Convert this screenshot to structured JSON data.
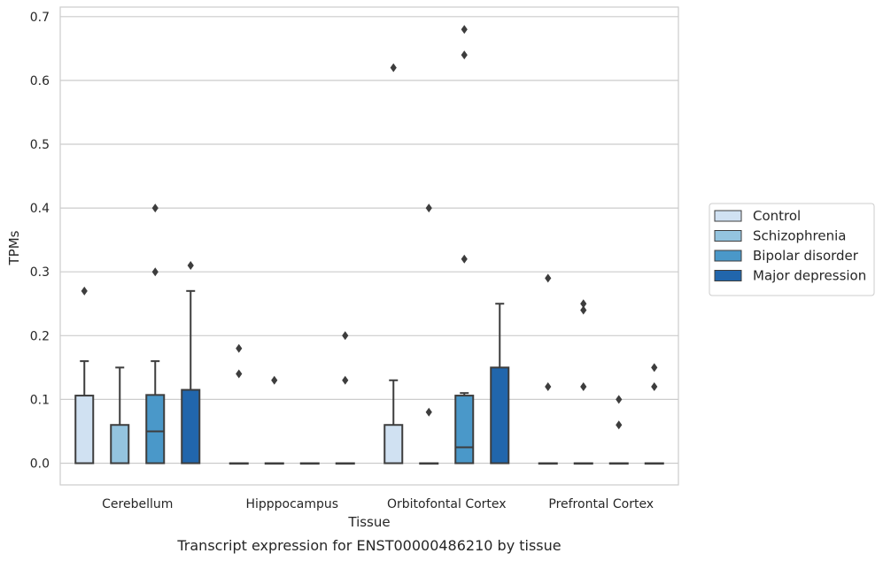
{
  "chart_data": {
    "type": "box",
    "title": "",
    "caption": "Transcript expression for ENST00000486210 by tissue",
    "xlabel": "Tissue",
    "ylabel": "TPMs",
    "ylim": [
      -0.034,
      0.715
    ],
    "yticks": [
      0.0,
      0.1,
      0.2,
      0.3,
      0.4,
      0.5,
      0.6,
      0.7
    ],
    "ytick_labels": [
      "0.0",
      "0.1",
      "0.2",
      "0.3",
      "0.4",
      "0.5",
      "0.6",
      "0.7"
    ],
    "grid": "horizontal",
    "legend_position": "right",
    "categories": [
      "Cerebellum",
      "Hipppocampus",
      "Orbitofontal Cortex",
      "Prefrontal Cortex"
    ],
    "series": [
      {
        "name": "Control",
        "color": "#d0e1f2",
        "boxes": [
          {
            "q1": 0.0,
            "median": 0.0,
            "q3": 0.106,
            "whisker_low": 0.0,
            "whisker_high": 0.16,
            "outliers": [
              0.27
            ]
          },
          {
            "q1": 0.0,
            "median": 0.0,
            "q3": 0.0,
            "whisker_low": 0.0,
            "whisker_high": 0.0,
            "outliers": [
              0.14,
              0.18
            ]
          },
          {
            "q1": 0.0,
            "median": 0.0,
            "q3": 0.06,
            "whisker_low": 0.0,
            "whisker_high": 0.13,
            "outliers": [
              0.62
            ]
          },
          {
            "q1": 0.0,
            "median": 0.0,
            "q3": 0.0,
            "whisker_low": 0.0,
            "whisker_high": 0.0,
            "outliers": [
              0.12,
              0.29
            ]
          }
        ]
      },
      {
        "name": "Schizophrenia",
        "color": "#94c4df",
        "boxes": [
          {
            "q1": 0.0,
            "median": 0.0,
            "q3": 0.06,
            "whisker_low": 0.0,
            "whisker_high": 0.15,
            "outliers": []
          },
          {
            "q1": 0.0,
            "median": 0.0,
            "q3": 0.0,
            "whisker_low": 0.0,
            "whisker_high": 0.0,
            "outliers": [
              0.13
            ]
          },
          {
            "q1": 0.0,
            "median": 0.0,
            "q3": 0.0,
            "whisker_low": 0.0,
            "whisker_high": 0.0,
            "outliers": [
              0.08,
              0.4
            ]
          },
          {
            "q1": 0.0,
            "median": 0.0,
            "q3": 0.0,
            "whisker_low": 0.0,
            "whisker_high": 0.0,
            "outliers": [
              0.12,
              0.24,
              0.25
            ]
          }
        ]
      },
      {
        "name": "Bipolar disorder",
        "color": "#4a98c9",
        "boxes": [
          {
            "q1": 0.0,
            "median": 0.05,
            "q3": 0.107,
            "whisker_low": 0.0,
            "whisker_high": 0.16,
            "outliers": [
              0.3,
              0.4
            ]
          },
          {
            "q1": 0.0,
            "median": 0.0,
            "q3": 0.0,
            "whisker_low": 0.0,
            "whisker_high": 0.0,
            "outliers": []
          },
          {
            "q1": 0.0,
            "median": 0.025,
            "q3": 0.106,
            "whisker_low": 0.0,
            "whisker_high": 0.11,
            "outliers": [
              0.32,
              0.64,
              0.68
            ]
          },
          {
            "q1": 0.0,
            "median": 0.0,
            "q3": 0.0,
            "whisker_low": 0.0,
            "whisker_high": 0.0,
            "outliers": [
              0.06,
              0.1
            ]
          }
        ]
      },
      {
        "name": "Major depression",
        "color": "#2166ac",
        "boxes": [
          {
            "q1": 0.0,
            "median": 0.0,
            "q3": 0.115,
            "whisker_low": 0.0,
            "whisker_high": 0.27,
            "outliers": [
              0.31
            ]
          },
          {
            "q1": 0.0,
            "median": 0.0,
            "q3": 0.0,
            "whisker_low": 0.0,
            "whisker_high": 0.0,
            "outliers": [
              0.13,
              0.2
            ]
          },
          {
            "q1": 0.0,
            "median": 0.0,
            "q3": 0.15,
            "whisker_low": 0.0,
            "whisker_high": 0.25,
            "outliers": []
          },
          {
            "q1": 0.0,
            "median": 0.0,
            "q3": 0.0,
            "whisker_low": 0.0,
            "whisker_high": 0.0,
            "outliers": [
              0.12,
              0.15
            ]
          }
        ]
      }
    ]
  }
}
